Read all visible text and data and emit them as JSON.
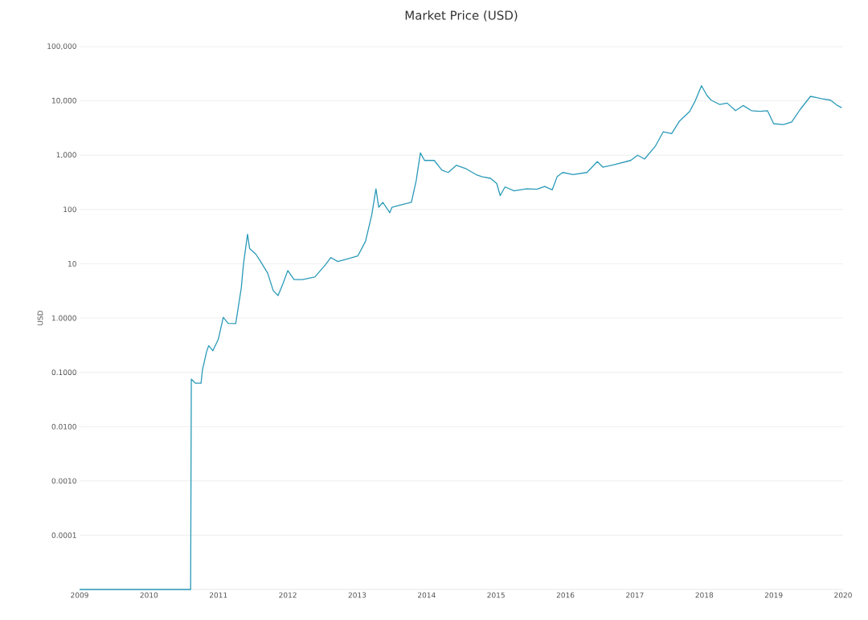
{
  "chart_data": {
    "type": "line",
    "title": "Market Price (USD)",
    "ylabel": "USD",
    "log": "y",
    "grid": "y",
    "color": "#2a9ab8",
    "x": [
      2009,
      2010.6,
      2010.61,
      2010.67,
      2010.75,
      2010.77,
      2010.83,
      2010.86,
      2010.92,
      2011.0,
      2011.07,
      2011.14,
      2011.25,
      2011.33,
      2011.36,
      2011.42,
      2011.45,
      2011.54,
      2011.59,
      2011.71,
      2011.79,
      2011.86,
      2011.93,
      2012.0,
      2012.09,
      2012.21,
      2012.39,
      2012.54,
      2012.62,
      2012.72,
      2012.83,
      2013.01,
      2013.12,
      2013.21,
      2013.27,
      2013.31,
      2013.37,
      2013.47,
      2013.5,
      2013.64,
      2013.78,
      2013.85,
      2013.91,
      2013.97,
      2014.11,
      2014.22,
      2014.31,
      2014.43,
      2014.57,
      2014.71,
      2014.8,
      2014.92,
      2015.01,
      2015.06,
      2015.13,
      2015.26,
      2015.44,
      2015.59,
      2015.7,
      2015.81,
      2015.88,
      2015.96,
      2016.11,
      2016.31,
      2016.46,
      2016.54,
      2016.71,
      2016.94,
      2017.04,
      2017.14,
      2017.29,
      2017.41,
      2017.53,
      2017.64,
      2017.79,
      2017.87,
      2017.96,
      2018.04,
      2018.1,
      2018.22,
      2018.33,
      2018.45,
      2018.56,
      2018.68,
      2018.8,
      2018.91,
      2019.0,
      2019.14,
      2019.26,
      2019.38,
      2019.53,
      2019.69,
      2019.82,
      2019.92,
      2019.98
    ],
    "values": [
      1e-05,
      1e-05,
      0.075,
      0.063,
      0.063,
      0.11,
      0.24,
      0.31,
      0.25,
      0.41,
      1.03,
      0.8,
      0.79,
      3.6,
      9.5,
      35,
      19,
      15,
      12,
      6.7,
      3.2,
      2.6,
      4.3,
      7.5,
      5.1,
      5.1,
      5.7,
      9.5,
      13,
      11,
      12,
      14,
      26,
      80,
      240,
      110,
      135,
      87,
      110,
      122,
      135,
      340,
      1100,
      800,
      800,
      530,
      480,
      650,
      560,
      440,
      400,
      375,
      300,
      180,
      260,
      220,
      240,
      235,
      265,
      230,
      400,
      480,
      440,
      480,
      760,
      600,
      670,
      800,
      1000,
      850,
      1430,
      2700,
      2500,
      4200,
      6400,
      10000,
      19000,
      12500,
      10300,
      8600,
      9100,
      6600,
      8200,
      6600,
      6400,
      6600,
      3800,
      3650,
      4100,
      6900,
      12100,
      11000,
      10300,
      8200,
      7500
    ],
    "xlim": [
      2009,
      2020
    ],
    "xticks": [
      2009,
      2010,
      2011,
      2012,
      2013,
      2014,
      2015,
      2016,
      2017,
      2018,
      2019,
      2020
    ],
    "ylim": [
      1e-05,
      100000
    ],
    "yticks": [
      {
        "value": 1e-05,
        "label": null
      },
      {
        "value": 0.0001,
        "label": "0.0001"
      },
      {
        "value": 0.001,
        "label": "0.0010"
      },
      {
        "value": 0.01,
        "label": "0.0100"
      },
      {
        "value": 0.1,
        "label": "0.1000"
      },
      {
        "value": 1,
        "label": "1.0000"
      },
      {
        "value": 10,
        "label": "10"
      },
      {
        "value": 100,
        "label": "100"
      },
      {
        "value": 1000,
        "label": "1,000"
      },
      {
        "value": 10000,
        "label": "10,000"
      },
      {
        "value": 100000,
        "label": "100,000"
      }
    ]
  }
}
